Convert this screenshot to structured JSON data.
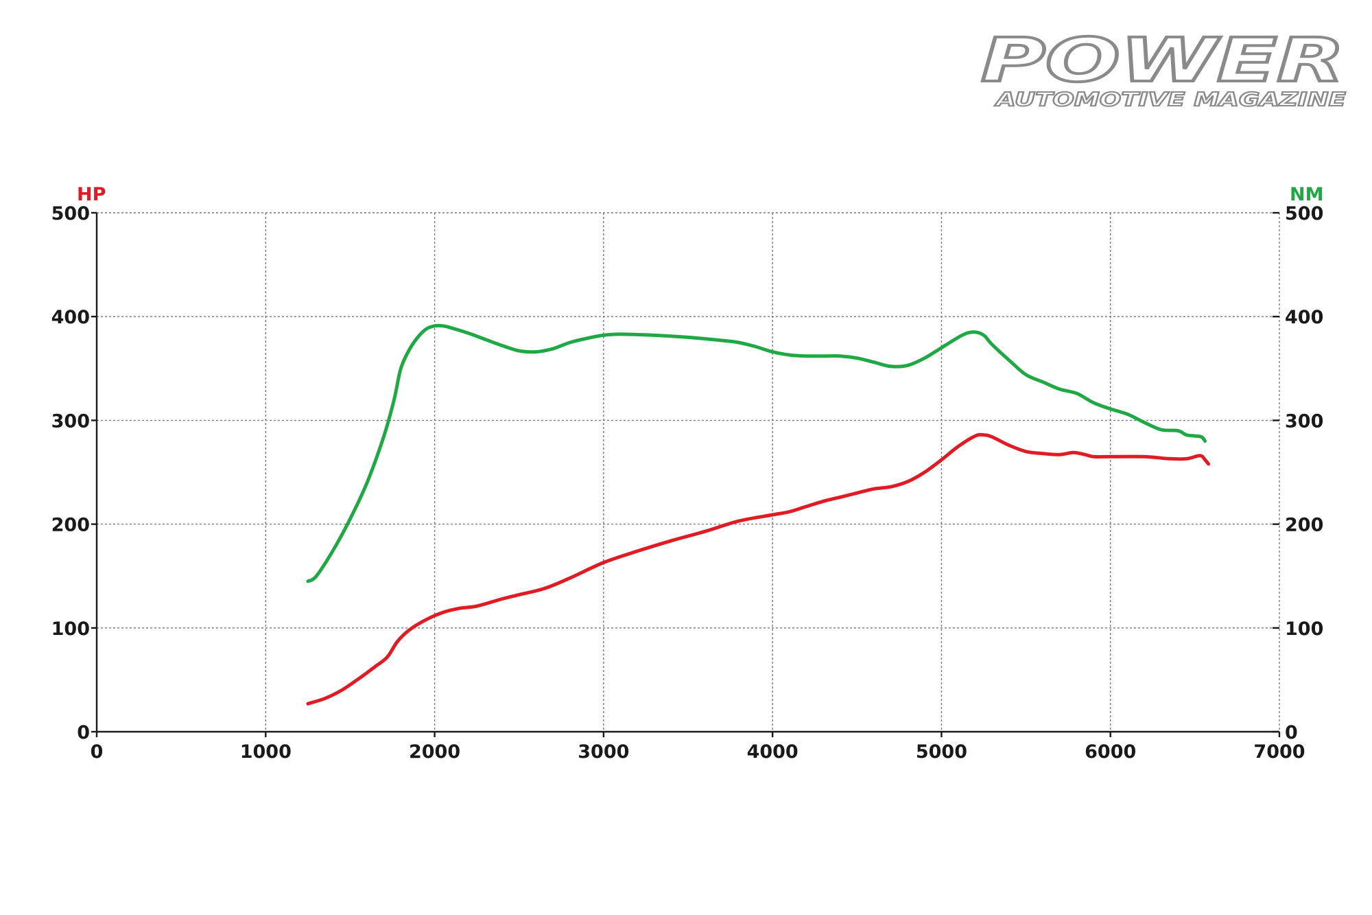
{
  "logo": {
    "title": "POWER",
    "subtitle": "AUTOMOTIVE MAGAZINE"
  },
  "chart_data": {
    "type": "line",
    "title": "",
    "xlabel": "",
    "xlim": [
      0,
      7000
    ],
    "x_ticks": [
      0,
      1000,
      2000,
      3000,
      4000,
      5000,
      6000,
      7000
    ],
    "grid": true,
    "y_left": {
      "label": "HP",
      "color": "#e01b24",
      "lim": [
        0,
        500
      ],
      "ticks": [
        0,
        100,
        200,
        300,
        400,
        500
      ]
    },
    "y_right": {
      "label": "NM",
      "color": "#1fa843",
      "lim": [
        0,
        500
      ],
      "ticks": [
        0,
        100,
        200,
        300,
        400,
        500
      ]
    },
    "series": [
      {
        "axis": "right",
        "color": "#1fa843",
        "points": [
          [
            1250,
            145
          ],
          [
            1300,
            150
          ],
          [
            1400,
            175
          ],
          [
            1500,
            205
          ],
          [
            1600,
            240
          ],
          [
            1700,
            285
          ],
          [
            1760,
            320
          ],
          [
            1800,
            350
          ],
          [
            1850,
            368
          ],
          [
            1900,
            380
          ],
          [
            1950,
            388
          ],
          [
            2000,
            391
          ],
          [
            2050,
            391
          ],
          [
            2100,
            389
          ],
          [
            2200,
            384
          ],
          [
            2300,
            378
          ],
          [
            2400,
            372
          ],
          [
            2500,
            367
          ],
          [
            2600,
            366
          ],
          [
            2700,
            369
          ],
          [
            2800,
            375
          ],
          [
            2900,
            379
          ],
          [
            3000,
            382
          ],
          [
            3100,
            383
          ],
          [
            3300,
            382
          ],
          [
            3500,
            380
          ],
          [
            3700,
            377
          ],
          [
            3800,
            375
          ],
          [
            3900,
            371
          ],
          [
            4000,
            366
          ],
          [
            4100,
            363
          ],
          [
            4200,
            362
          ],
          [
            4300,
            362
          ],
          [
            4400,
            362
          ],
          [
            4500,
            360
          ],
          [
            4600,
            356
          ],
          [
            4700,
            352
          ],
          [
            4800,
            353
          ],
          [
            4900,
            360
          ],
          [
            5000,
            370
          ],
          [
            5100,
            380
          ],
          [
            5150,
            384
          ],
          [
            5200,
            385
          ],
          [
            5250,
            382
          ],
          [
            5300,
            373
          ],
          [
            5400,
            358
          ],
          [
            5500,
            344
          ],
          [
            5600,
            337
          ],
          [
            5700,
            330
          ],
          [
            5800,
            326
          ],
          [
            5900,
            317
          ],
          [
            6000,
            311
          ],
          [
            6100,
            306
          ],
          [
            6200,
            298
          ],
          [
            6300,
            291
          ],
          [
            6400,
            290
          ],
          [
            6450,
            286
          ],
          [
            6500,
            285
          ],
          [
            6540,
            284
          ],
          [
            6560,
            280
          ]
        ]
      },
      {
        "axis": "left",
        "color": "#e01b24",
        "points": [
          [
            1250,
            27
          ],
          [
            1350,
            32
          ],
          [
            1450,
            40
          ],
          [
            1550,
            51
          ],
          [
            1650,
            63
          ],
          [
            1720,
            72
          ],
          [
            1780,
            87
          ],
          [
            1850,
            98
          ],
          [
            1950,
            108
          ],
          [
            2050,
            115
          ],
          [
            2150,
            119
          ],
          [
            2250,
            121
          ],
          [
            2400,
            128
          ],
          [
            2500,
            132
          ],
          [
            2650,
            138
          ],
          [
            2800,
            148
          ],
          [
            3000,
            163
          ],
          [
            3200,
            174
          ],
          [
            3400,
            184
          ],
          [
            3600,
            193
          ],
          [
            3800,
            203
          ],
          [
            4000,
            209
          ],
          [
            4100,
            212
          ],
          [
            4200,
            217
          ],
          [
            4300,
            222
          ],
          [
            4400,
            226
          ],
          [
            4500,
            230
          ],
          [
            4600,
            234
          ],
          [
            4700,
            236
          ],
          [
            4800,
            241
          ],
          [
            4900,
            250
          ],
          [
            5000,
            262
          ],
          [
            5100,
            275
          ],
          [
            5200,
            285
          ],
          [
            5250,
            286
          ],
          [
            5300,
            284
          ],
          [
            5400,
            276
          ],
          [
            5500,
            270
          ],
          [
            5600,
            268
          ],
          [
            5700,
            267
          ],
          [
            5780,
            269
          ],
          [
            5850,
            267
          ],
          [
            5900,
            265
          ],
          [
            6000,
            265
          ],
          [
            6200,
            265
          ],
          [
            6350,
            263
          ],
          [
            6450,
            263
          ],
          [
            6530,
            266
          ],
          [
            6560,
            262
          ],
          [
            6580,
            258
          ]
        ]
      }
    ]
  }
}
